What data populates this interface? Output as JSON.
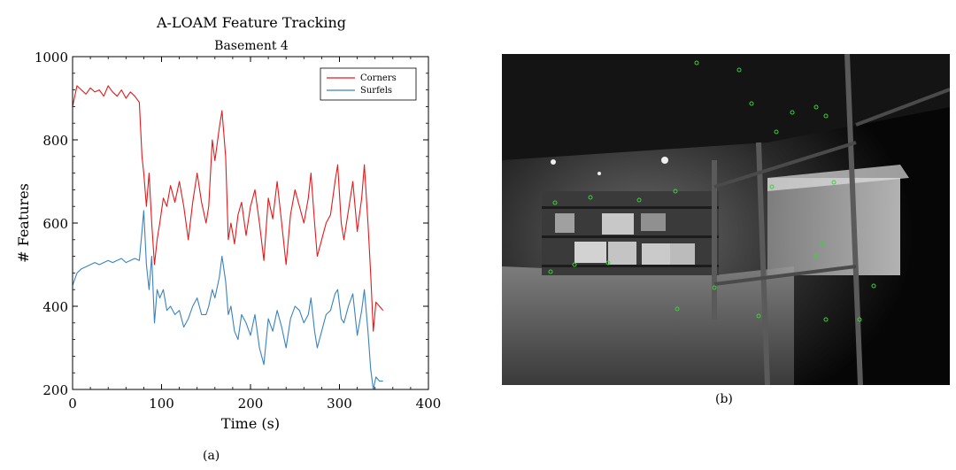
{
  "chart_data": {
    "type": "line",
    "title": "A-LOAM Feature Tracking",
    "subtitle": "Basement 4",
    "xlabel": "Time (s)",
    "ylabel": "# Features",
    "xlim": [
      0,
      400
    ],
    "ylim": [
      200,
      1000
    ],
    "xticks": [
      0,
      100,
      200,
      300,
      400
    ],
    "yticks": [
      200,
      400,
      600,
      800,
      1000
    ],
    "grid": false,
    "legend": "top-right",
    "series": [
      {
        "name": "Corners",
        "color": "#e41a1c",
        "x": [
          0,
          5,
          10,
          15,
          20,
          25,
          30,
          35,
          40,
          45,
          50,
          55,
          60,
          65,
          70,
          75,
          78,
          80,
          83,
          86,
          89,
          92,
          95,
          98,
          102,
          106,
          110,
          115,
          120,
          125,
          130,
          135,
          140,
          145,
          150,
          153,
          157,
          160,
          165,
          168,
          172,
          175,
          178,
          182,
          186,
          190,
          195,
          200,
          205,
          210,
          215,
          220,
          225,
          230,
          235,
          240,
          245,
          250,
          255,
          260,
          265,
          268,
          272,
          275,
          280,
          285,
          290,
          295,
          298,
          302,
          305,
          310,
          315,
          320,
          325,
          328,
          332,
          335,
          338,
          341,
          345,
          349
        ],
        "y": [
          880,
          930,
          920,
          910,
          925,
          915,
          920,
          905,
          930,
          915,
          905,
          920,
          900,
          915,
          905,
          890,
          760,
          720,
          640,
          720,
          600,
          500,
          560,
          600,
          660,
          640,
          690,
          650,
          700,
          640,
          560,
          650,
          720,
          650,
          600,
          640,
          800,
          750,
          830,
          870,
          760,
          560,
          600,
          550,
          620,
          650,
          570,
          640,
          680,
          600,
          510,
          660,
          610,
          700,
          600,
          500,
          620,
          680,
          640,
          600,
          660,
          720,
          600,
          520,
          560,
          600,
          620,
          700,
          740,
          600,
          560,
          630,
          700,
          580,
          660,
          740,
          600,
          480,
          340,
          410,
          400,
          390
        ]
      },
      {
        "name": "Surfels",
        "color": "#3a83bf",
        "x": [
          0,
          5,
          10,
          15,
          20,
          25,
          30,
          35,
          40,
          45,
          50,
          55,
          60,
          65,
          70,
          75,
          78,
          80,
          83,
          86,
          89,
          92,
          95,
          98,
          102,
          106,
          110,
          115,
          120,
          125,
          130,
          135,
          140,
          145,
          150,
          153,
          157,
          160,
          165,
          168,
          172,
          175,
          178,
          182,
          186,
          190,
          195,
          200,
          205,
          210,
          215,
          220,
          225,
          230,
          235,
          240,
          245,
          250,
          255,
          260,
          265,
          268,
          272,
          275,
          280,
          285,
          290,
          295,
          298,
          302,
          305,
          310,
          315,
          320,
          325,
          328,
          332,
          335,
          338,
          341,
          345,
          349
        ],
        "y": [
          450,
          480,
          490,
          495,
          500,
          505,
          500,
          505,
          510,
          505,
          510,
          515,
          505,
          510,
          515,
          510,
          580,
          630,
          500,
          440,
          520,
          360,
          440,
          420,
          440,
          390,
          400,
          380,
          390,
          350,
          370,
          400,
          420,
          380,
          380,
          400,
          440,
          420,
          470,
          520,
          460,
          380,
          400,
          340,
          320,
          380,
          360,
          330,
          380,
          300,
          260,
          370,
          340,
          390,
          350,
          300,
          370,
          400,
          390,
          360,
          380,
          420,
          340,
          300,
          340,
          380,
          390,
          430,
          440,
          370,
          360,
          400,
          430,
          330,
          390,
          440,
          340,
          250,
          200,
          230,
          220,
          220
        ]
      }
    ]
  },
  "captions": {
    "a": "(a)",
    "b": "(b)"
  }
}
